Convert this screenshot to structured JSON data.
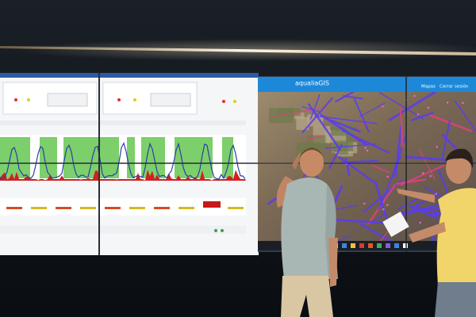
{
  "map_app": {
    "logo": "aqualiaGIS",
    "menu": [
      "Mapas",
      "Cerrar sesión"
    ]
  }
}
